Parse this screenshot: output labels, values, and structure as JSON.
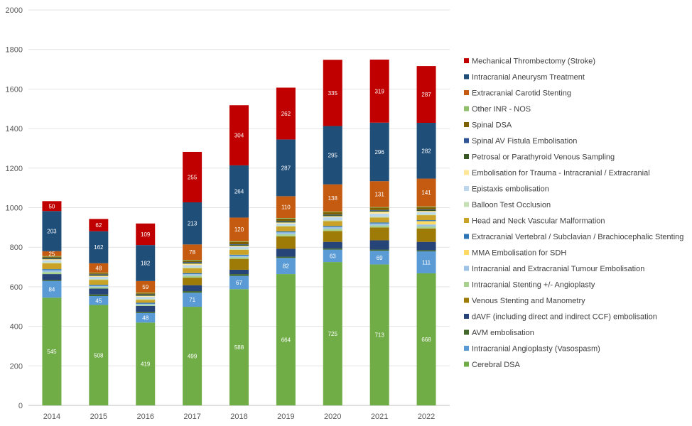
{
  "chart_data": {
    "type": "bar",
    "stacked": true,
    "title": "",
    "xlabel": "",
    "ylabel": "",
    "ylim": [
      0,
      2000
    ],
    "yticks": [
      0,
      200,
      400,
      600,
      800,
      1000,
      1200,
      1400,
      1600,
      1800,
      2000
    ],
    "grid": true,
    "legend_position": "right",
    "categories": [
      "2014",
      "2015",
      "2016",
      "2017",
      "2018",
      "2019",
      "2020",
      "2021",
      "2022"
    ],
    "series": [
      {
        "name": "Cerebral DSA",
        "color": "#70AD47",
        "labeled": true,
        "values": [
          545,
          508,
          419,
          499,
          588,
          664,
          725,
          713,
          668
        ]
      },
      {
        "name": "Intracranial Angioplasty (Vasospasm)",
        "color": "#5B9BD5",
        "labeled": true,
        "values": [
          84,
          45,
          48,
          71,
          67,
          82,
          63,
          69,
          111
        ]
      },
      {
        "name": "AVM embolisation",
        "color": "#43682B",
        "labeled": false,
        "values": [
          5,
          8,
          6,
          8,
          9,
          6,
          6,
          6,
          6
        ]
      },
      {
        "name": "dAVF (including direct and indirect CCF) embolisation",
        "color": "#264478",
        "labeled": false,
        "values": [
          30,
          30,
          30,
          30,
          22,
          40,
          33,
          47,
          42
        ]
      },
      {
        "name": "Venous Stenting and Manometry",
        "color": "#9E7A06",
        "labeled": false,
        "values": [
          0,
          0,
          0,
          38,
          55,
          63,
          55,
          65,
          68
        ]
      },
      {
        "name": "Intracranial Stenting +/- Angioplasty",
        "color": "#A9D18E",
        "labeled": false,
        "values": [
          10,
          8,
          6,
          10,
          8,
          10,
          10,
          10,
          10
        ]
      },
      {
        "name": "Intracranial and Extracranial Tumour Embolisation",
        "color": "#9DC3E6",
        "labeled": false,
        "values": [
          10,
          6,
          5,
          8,
          8,
          10,
          10,
          10,
          10
        ]
      },
      {
        "name": "MMA Embolisation for SDH",
        "color": "#FFD966",
        "labeled": false,
        "values": [
          0,
          0,
          0,
          0,
          0,
          0,
          0,
          0,
          17
        ]
      },
      {
        "name": "Extracranial Vertebral / Subclavian / Brachiocephalic Stenting",
        "color": "#2E75B6",
        "labeled": false,
        "values": [
          5,
          5,
          5,
          5,
          5,
          5,
          5,
          5,
          5
        ]
      },
      {
        "name": "Head and Neck Vascular Malformation",
        "color": "#C9A227",
        "labeled": false,
        "values": [
          30,
          25,
          15,
          25,
          25,
          25,
          25,
          25,
          25
        ]
      },
      {
        "name": "Balloon Test Occlusion",
        "color": "#C5E0B4",
        "labeled": false,
        "values": [
          5,
          5,
          5,
          5,
          5,
          5,
          5,
          5,
          5
        ]
      },
      {
        "name": "Epistaxis embolisation",
        "color": "#BDD7EE",
        "labeled": false,
        "values": [
          10,
          10,
          10,
          10,
          10,
          10,
          15,
          15,
          10
        ]
      },
      {
        "name": "Embolisation for Trauma - Intracranial / Extracranial",
        "color": "#FFE699",
        "labeled": false,
        "values": [
          5,
          5,
          5,
          8,
          5,
          5,
          5,
          10,
          6
        ]
      },
      {
        "name": "Petrosal or Parathyroid Venous Sampling",
        "color": "#385723",
        "labeled": false,
        "values": [
          5,
          5,
          5,
          5,
          5,
          5,
          5,
          5,
          5
        ]
      },
      {
        "name": "Spinal AV Fistula Embolisation",
        "color": "#2F5597",
        "labeled": false,
        "values": [
          3,
          3,
          3,
          3,
          3,
          3,
          3,
          3,
          3
        ]
      },
      {
        "name": "Spinal DSA",
        "color": "#7F6000",
        "labeled": false,
        "values": [
          5,
          5,
          5,
          8,
          12,
          12,
          12,
          12,
          12
        ]
      },
      {
        "name": "Other INR - NOS",
        "color": "#8FBF6A",
        "labeled": false,
        "values": [
          3,
          3,
          3,
          3,
          3,
          3,
          3,
          3,
          3
        ]
      },
      {
        "name": "Extracranial Carotid Stenting",
        "color": "#C55A11",
        "labeled": true,
        "values": [
          25,
          48,
          59,
          78,
          120,
          110,
          138,
          131,
          141
        ]
      },
      {
        "name": "Intracranial Aneurysm Treatment",
        "color": "#1F4E79",
        "labeled": true,
        "values": [
          203,
          162,
          182,
          213,
          264,
          287,
          295,
          296,
          282
        ]
      },
      {
        "name": "Mechanical Thrombectomy (Stroke)",
        "color": "#C00000",
        "labeled": true,
        "values": [
          50,
          62,
          109,
          255,
          304,
          262,
          335,
          319,
          287
        ]
      }
    ]
  }
}
